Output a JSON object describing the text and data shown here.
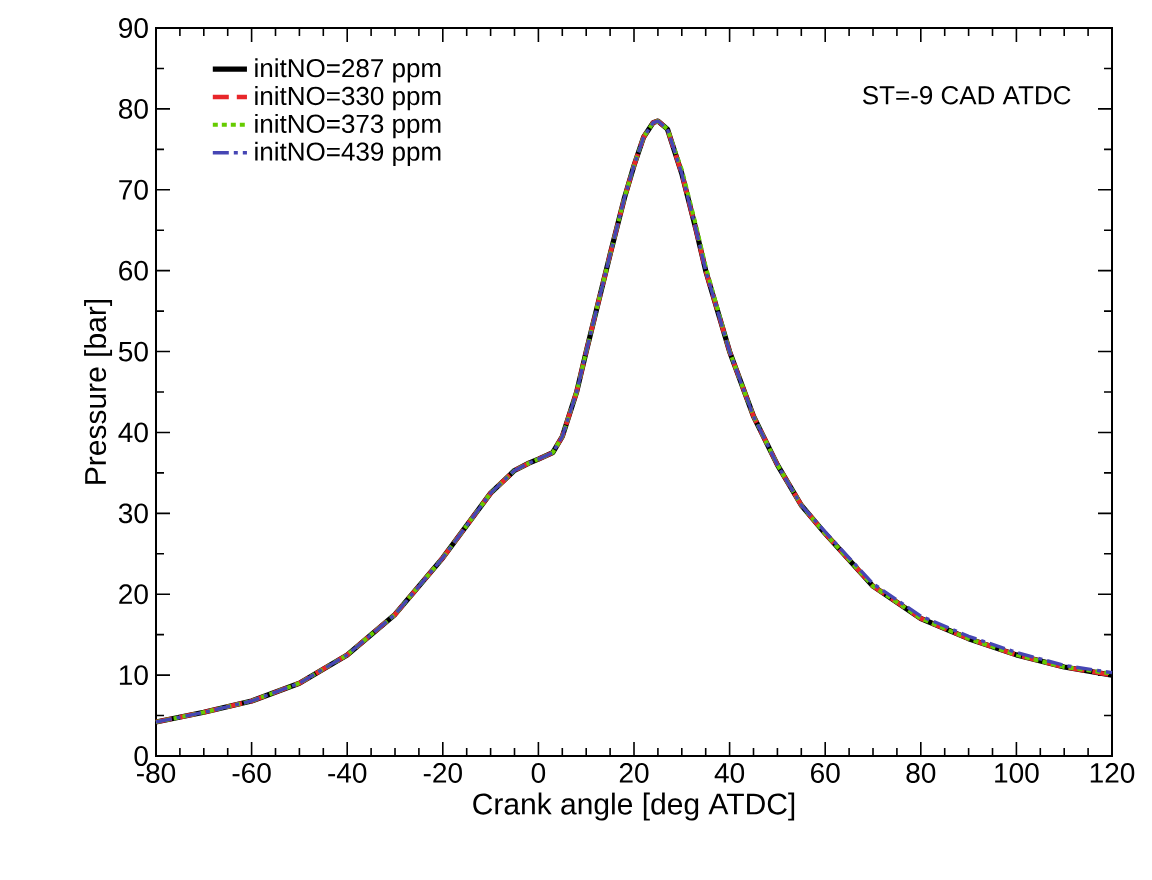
{
  "chart_data": {
    "type": "line",
    "xlabel": "Crank angle [deg ATDC]",
    "ylabel": "Pressure [bar]",
    "annotations": [
      "ST=-9 CAD ATDC"
    ],
    "xlim": [
      -80,
      120
    ],
    "xticks": [
      -80,
      -60,
      -40,
      -20,
      0,
      20,
      40,
      60,
      80,
      100,
      120
    ],
    "ylim": [
      0,
      90
    ],
    "yticks": [
      0,
      10,
      20,
      30,
      40,
      50,
      60,
      70,
      80,
      90
    ],
    "x": [
      -80,
      -70,
      -60,
      -50,
      -40,
      -30,
      -20,
      -15,
      -10,
      -5,
      -2,
      0,
      3,
      5,
      8,
      10,
      15,
      18,
      20,
      22,
      24,
      25,
      27,
      30,
      33,
      35,
      40,
      45,
      50,
      55,
      60,
      70,
      80,
      90,
      100,
      110,
      120
    ],
    "legend": "top left",
    "grid": false,
    "marker": "none",
    "series": [
      {
        "name": "initNO=287 ppm",
        "color": "#000000",
        "line_style": "solid",
        "values": [
          4.2,
          5.4,
          6.8,
          9.0,
          12.5,
          17.5,
          24.5,
          28.5,
          32.5,
          35.3,
          36.2,
          36.7,
          37.5,
          39.5,
          45,
          50,
          62,
          69,
          73,
          76.5,
          78.3,
          78.5,
          77.5,
          72,
          65,
          60,
          50,
          42,
          36,
          31,
          27.5,
          21,
          17,
          14.5,
          12.5,
          11,
          10
        ]
      },
      {
        "name": "initNO=330 ppm",
        "color": "#e8262a",
        "line_style": "dashed",
        "values": [
          4.2,
          5.4,
          6.8,
          9.0,
          12.5,
          17.5,
          24.5,
          28.5,
          32.5,
          35.3,
          36.2,
          36.7,
          37.5,
          39.5,
          45,
          50,
          62,
          69,
          73,
          76.5,
          78.3,
          78.5,
          77.5,
          72,
          65,
          60,
          50,
          42,
          36,
          31,
          27.5,
          21,
          17,
          14.5,
          12.5,
          11,
          10
        ]
      },
      {
        "name": "initNO=373 ppm",
        "color": "#66cc00",
        "line_style": "dotted",
        "values": [
          4.2,
          5.4,
          6.8,
          9.0,
          12.5,
          17.5,
          24.5,
          28.5,
          32.5,
          35.3,
          36.2,
          36.7,
          37.5,
          39.5,
          45,
          50,
          62,
          69,
          73,
          76.5,
          78.3,
          78.5,
          77.5,
          72.5,
          65.5,
          60.5,
          50,
          42,
          36,
          31,
          27.5,
          21,
          17,
          14.5,
          12.5,
          11,
          10.2
        ]
      },
      {
        "name": "initNO=439 ppm",
        "color": "#4646b4",
        "line_style": "dashdot",
        "values": [
          4.2,
          5.4,
          6.8,
          9.0,
          12.5,
          17.5,
          24.5,
          28.5,
          32.5,
          35.3,
          36.2,
          36.7,
          37.5,
          39.5,
          45,
          50,
          62,
          69,
          73,
          76.5,
          78.3,
          78.5,
          77.5,
          72,
          65,
          60,
          50,
          42,
          36,
          31,
          27.7,
          21.3,
          17.3,
          14.8,
          12.8,
          11.2,
          10.3
        ]
      }
    ]
  }
}
